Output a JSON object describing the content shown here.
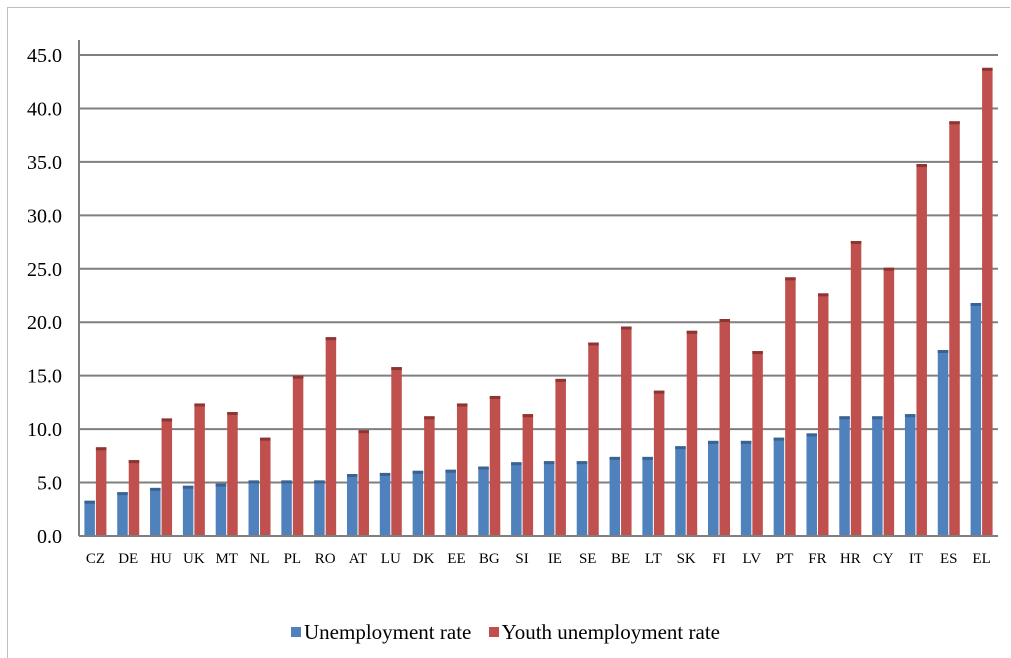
{
  "chart_data": {
    "type": "bar",
    "title": "",
    "xlabel": "",
    "ylabel": "",
    "ylim": [
      0,
      45
    ],
    "ytick_step": 5,
    "ytick_labels": [
      "0.0",
      "5.0",
      "10.0",
      "15.0",
      "20.0",
      "25.0",
      "30.0",
      "35.0",
      "40.0",
      "45.0"
    ],
    "grid": true,
    "legend_position": "bottom",
    "categories": [
      "CZ",
      "DE",
      "HU",
      "UK",
      "MT",
      "NL",
      "PL",
      "RO",
      "AT",
      "LU",
      "DK",
      "EE",
      "BG",
      "SI",
      "IE",
      "SE",
      "BE",
      "LT",
      "SK",
      "FI",
      "LV",
      "PT",
      "FR",
      "HR",
      "CY",
      "IT",
      "ES",
      "EL"
    ],
    "series": [
      {
        "name": "Unemployment rate",
        "color": "#4f81bd",
        "values": [
          3.3,
          4.1,
          4.5,
          4.7,
          4.9,
          5.2,
          5.2,
          5.2,
          5.8,
          5.9,
          6.1,
          6.2,
          6.5,
          6.9,
          7.0,
          7.0,
          7.4,
          7.4,
          8.4,
          8.9,
          8.9,
          9.2,
          9.6,
          11.2,
          11.2,
          11.4,
          17.4,
          21.8
        ]
      },
      {
        "name": "Youth unemployment rate",
        "color": "#c0504d",
        "values": [
          8.3,
          7.1,
          11.0,
          12.4,
          11.6,
          9.2,
          15.0,
          18.6,
          9.9,
          15.8,
          11.2,
          12.4,
          13.1,
          11.4,
          14.7,
          18.1,
          19.6,
          13.6,
          19.2,
          20.3,
          17.3,
          24.2,
          22.7,
          27.6,
          25.1,
          34.8,
          38.8,
          43.8
        ]
      }
    ]
  }
}
